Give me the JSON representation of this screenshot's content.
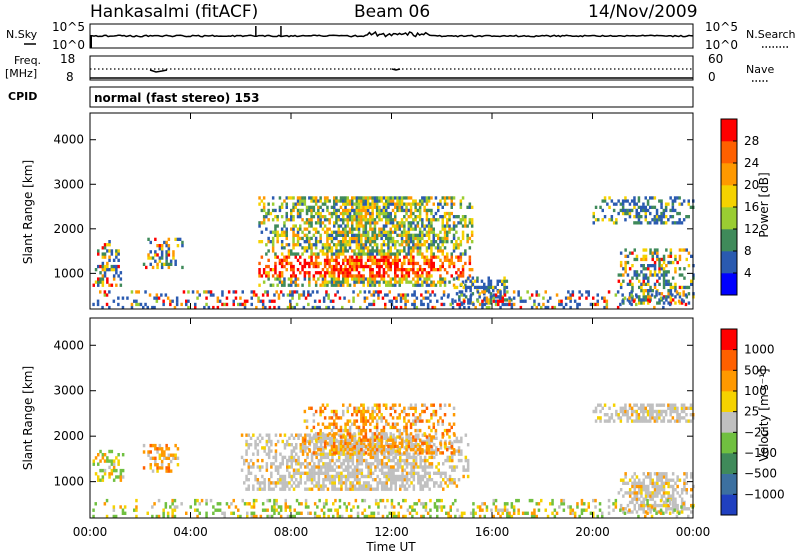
{
  "header": {
    "station": "Hankasalmi (fitACF)",
    "beam": "Beam 06",
    "date": "14/Nov/2009"
  },
  "strips": {
    "nsky_label": "N.Sky",
    "nsearch_label": "N.Search",
    "freq_label": "Freq.",
    "freq_unit": "[MHz]",
    "nave_label": "Nave",
    "cpid_label": "CPID",
    "noise_ticks": [
      "10^5",
      "10^0"
    ],
    "freq_ticks": [
      "18",
      "8"
    ],
    "nave_ticks": [
      "60",
      "0"
    ],
    "cpid_text": "normal (fast stereo) 153"
  },
  "chart_data": [
    {
      "type": "heatmap",
      "quantity": "power",
      "ylabel": "Slant Range [km]",
      "xlabel": "",
      "ylim": [
        200,
        4600
      ],
      "xlim_hours": [
        0,
        24
      ],
      "yticks": [
        1000,
        2000,
        3000,
        4000
      ],
      "colorbar": {
        "label": "Power [dB]",
        "ticks": [
          "4",
          "8",
          "12",
          "16",
          "20",
          "24",
          "28"
        ],
        "colors": [
          "#0000ff",
          "#2a5ab0",
          "#3f8a5a",
          "#9acd32",
          "#f5d200",
          "#ff9900",
          "#ff6000",
          "#ff0000"
        ]
      },
      "regions": [
        {
          "t": [
            0.1,
            1.3
          ],
          "r": [
            700,
            1700
          ],
          "level": "mixed"
        },
        {
          "t": [
            2.1,
            3.7
          ],
          "r": [
            1100,
            1800
          ],
          "level": "mixed"
        },
        {
          "t": [
            6.7,
            15.2
          ],
          "r": [
            700,
            2700
          ],
          "level": "high"
        },
        {
          "t": [
            14.2,
            16.8
          ],
          "r": [
            300,
            900
          ],
          "level": "low"
        },
        {
          "t": [
            20.0,
            24.0
          ],
          "r": [
            2100,
            2700
          ],
          "level": "low"
        },
        {
          "t": [
            21.0,
            24.0
          ],
          "r": [
            300,
            1500
          ],
          "level": "mixed"
        },
        {
          "t": [
            0.0,
            24.0
          ],
          "r": [
            200,
            600
          ],
          "level": "ground"
        }
      ]
    },
    {
      "type": "heatmap",
      "quantity": "velocity",
      "ylabel": "Slant Range [km]",
      "xlabel": "Time UT",
      "ylim": [
        200,
        4600
      ],
      "xlim_hours": [
        0,
        24
      ],
      "xticks": [
        "00:00",
        "04:00",
        "08:00",
        "12:00",
        "16:00",
        "20:00",
        "00:00"
      ],
      "yticks": [
        1000,
        2000,
        3000,
        4000
      ],
      "colorbar": {
        "label": "Velocity [m s⁻¹]",
        "ticks": [
          "1000",
          "500",
          "100",
          "25",
          "−25",
          "−100",
          "−500",
          "−1000"
        ],
        "colors": [
          "#2040c0",
          "#3c70a0",
          "#3f8a5a",
          "#70c040",
          "#c0c0c0",
          "#f5d200",
          "#ff9900",
          "#ff6000",
          "#ff0000"
        ]
      },
      "regions": [
        {
          "t": [
            0.1,
            1.3
          ],
          "r": [
            1000,
            1700
          ],
          "level": "toward"
        },
        {
          "t": [
            2.1,
            3.5
          ],
          "r": [
            1200,
            1800
          ],
          "level": "away"
        },
        {
          "t": [
            6.0,
            15.0
          ],
          "r": [
            800,
            2000
          ],
          "level": "near-zero"
        },
        {
          "t": [
            8.5,
            14.5
          ],
          "r": [
            1600,
            2700
          ],
          "level": "away"
        },
        {
          "t": [
            20.0,
            24.0
          ],
          "r": [
            2300,
            2700
          ],
          "level": "near-zero"
        },
        {
          "t": [
            21.0,
            24.0
          ],
          "r": [
            300,
            1200
          ],
          "level": "near-zero"
        },
        {
          "t": [
            0.0,
            24.0
          ],
          "r": [
            200,
            600
          ],
          "level": "ground"
        }
      ]
    }
  ]
}
